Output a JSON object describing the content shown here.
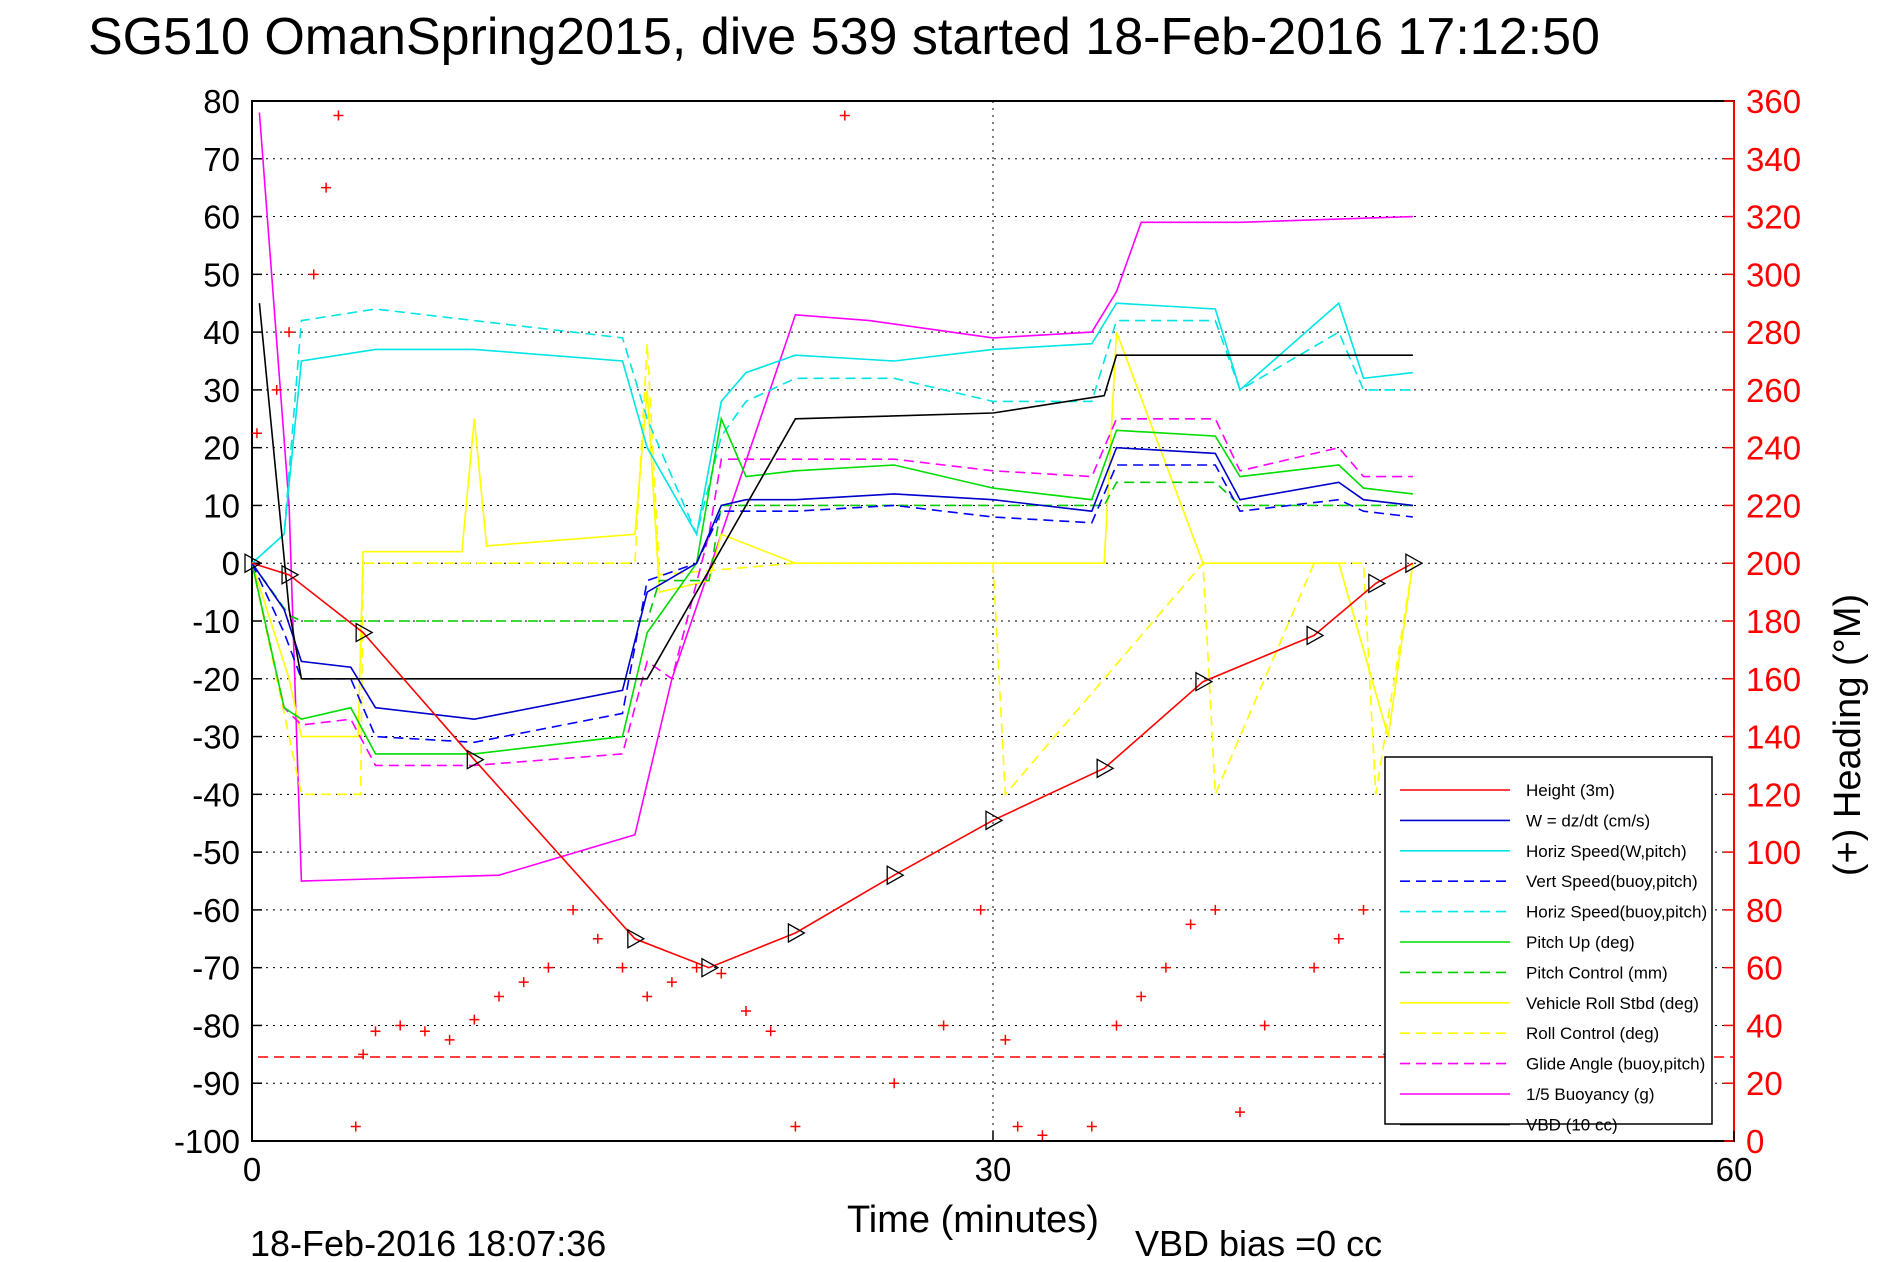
{
  "chart_data": {
    "type": "line",
    "title": "SG510 OmanSpring2015, dive 539 started 18-Feb-2016 17:12:50",
    "xlabel": "Time (minutes)",
    "ylabel": "",
    "y2label": "(+) Heading (°M)",
    "xlim": [
      0,
      60
    ],
    "ylim": [
      -100,
      80
    ],
    "y2lim": [
      0,
      360
    ],
    "x_ticks": [
      "0",
      "30",
      "60"
    ],
    "y_ticks": [
      "80",
      "70",
      "60",
      "50",
      "40",
      "30",
      "20",
      "10",
      "0",
      "-10",
      "-20",
      "-30",
      "-40",
      "-50",
      "-60",
      "-70",
      "-80",
      "-90",
      "-100"
    ],
    "y2_ticks": [
      "360",
      "340",
      "320",
      "300",
      "280",
      "260",
      "240",
      "220",
      "200",
      "180",
      "160",
      "140",
      "120",
      "100",
      "80",
      "60",
      "40",
      "20",
      "0"
    ],
    "grid": true,
    "legend_position": "bottom-right",
    "footer_left": "18-Feb-2016 18:07:36",
    "footer_right": "VBD bias =0 cc",
    "series": [
      {
        "name": "Height (3m)",
        "color": "#ff0000",
        "style": "solid-triangles",
        "x": [
          0,
          1.5,
          4.5,
          9,
          15.5,
          18.5,
          22,
          26,
          30,
          34.5,
          38.5,
          43,
          45.5,
          47
        ],
        "y": [
          0,
          -2,
          -12,
          -34,
          -65,
          -70,
          -64,
          -54,
          -44.5,
          -35.5,
          -20.5,
          -12.5,
          -3.5,
          0
        ]
      },
      {
        "name": "W = dz/dt (cm/s)",
        "color": "#0000cc",
        "style": "solid",
        "x": [
          0,
          1.3,
          2,
          4,
          5,
          9,
          15,
          16,
          18,
          19,
          20,
          22,
          26,
          30,
          34,
          35,
          39,
          40,
          44,
          45,
          47
        ],
        "y": [
          0,
          -8,
          -17,
          -18,
          -25,
          -27,
          -22,
          -5,
          0,
          10,
          11,
          11,
          12,
          11,
          9,
          20,
          19,
          11,
          14,
          11,
          10
        ]
      },
      {
        "name": "Horiz Speed(W,pitch)",
        "color": "#00e5e5",
        "style": "solid",
        "x": [
          0,
          1.3,
          2,
          5,
          9,
          15,
          16,
          18,
          19,
          20,
          22,
          26,
          30,
          34,
          35,
          39,
          40,
          44,
          45,
          47
        ],
        "y": [
          0,
          5,
          35,
          37,
          37,
          35,
          20,
          5,
          28,
          33,
          36,
          35,
          37,
          38,
          45,
          44,
          30,
          45,
          32,
          33
        ]
      },
      {
        "name": "Vert Speed(buoy,pitch)",
        "color": "#0000ff",
        "style": "dashed",
        "x": [
          0,
          1.3,
          2,
          4,
          5,
          9,
          15,
          16,
          18,
          19,
          20,
          22,
          26,
          30,
          34,
          35,
          39,
          40,
          44,
          45,
          47
        ],
        "y": [
          0,
          -12,
          -20,
          -20,
          -30,
          -31,
          -26,
          -3,
          0,
          9,
          9,
          9,
          10,
          8,
          7,
          17,
          17,
          9,
          11,
          9,
          8
        ]
      },
      {
        "name": "Horiz Speed(buoy,pitch)",
        "color": "#00e5e5",
        "style": "dashed",
        "x": [
          0,
          1.3,
          2,
          5,
          9,
          15,
          16,
          18,
          19,
          20,
          22,
          26,
          30,
          34,
          35,
          39,
          40,
          44,
          45,
          47
        ],
        "y": [
          0,
          5,
          42,
          44,
          42,
          39,
          25,
          5,
          22,
          28,
          32,
          32,
          28,
          28,
          42,
          42,
          30,
          40,
          30,
          30
        ]
      },
      {
        "name": "Pitch Up (deg)",
        "color": "#00dd00",
        "style": "solid",
        "x": [
          0,
          1.3,
          2,
          4,
          5,
          9,
          15,
          16,
          18,
          19,
          20,
          22,
          26,
          30,
          34,
          35,
          39,
          40,
          44,
          45,
          47
        ],
        "y": [
          0,
          -25,
          -27,
          -25,
          -33,
          -33,
          -30,
          -12,
          0,
          25,
          15,
          16,
          17,
          13,
          11,
          23,
          22,
          15,
          17,
          13,
          12
        ]
      },
      {
        "name": "Pitch Control (mm)",
        "color": "#00cc00",
        "style": "dashed",
        "x": [
          0,
          1.5,
          2,
          16,
          16.5,
          18.5,
          19,
          34.5,
          35,
          39,
          40,
          47
        ],
        "y": [
          0,
          -9,
          -10,
          -10,
          -3,
          -3,
          10,
          10,
          14,
          14,
          10,
          10
        ]
      },
      {
        "name": "Vehicle Roll Stbd (deg)",
        "color": "#ffff00",
        "style": "solid",
        "x": [
          0,
          1.5,
          2,
          4.3,
          4.5,
          8.5,
          9,
          9.5,
          15.5,
          16,
          16.5,
          18.5,
          19,
          22,
          26,
          30,
          34.5,
          35,
          38.5,
          39,
          43,
          44,
          46,
          47
        ],
        "y": [
          0,
          -20,
          -30,
          -30,
          2,
          2,
          25,
          3,
          5,
          30,
          -5,
          -3,
          5,
          0,
          0,
          0,
          0,
          40,
          0,
          0,
          0,
          0,
          -30,
          0
        ]
      },
      {
        "name": "Roll Control (deg)",
        "color": "#ffff00",
        "style": "dashed",
        "x": [
          0,
          1.5,
          2,
          4.4,
          4.5,
          15.5,
          16,
          16.5,
          22,
          30,
          30.5,
          38.5,
          39,
          43,
          45,
          45.5,
          47
        ],
        "y": [
          0,
          -30,
          -40,
          -40,
          0,
          0,
          38,
          -2,
          0,
          0,
          -40,
          0,
          -40,
          0,
          0,
          -40,
          0
        ]
      },
      {
        "name": "Glide Angle (buoy,pitch)",
        "color": "#ff00ff",
        "style": "dashed",
        "x": [
          0,
          1.3,
          2,
          4,
          5,
          9,
          15,
          16,
          17,
          18.5,
          19,
          20,
          22,
          26,
          30,
          34,
          35,
          39,
          40,
          44,
          45,
          47
        ],
        "y": [
          0,
          -25,
          -28,
          -27,
          -35,
          -35,
          -33,
          -17,
          -20,
          5,
          18,
          18,
          18,
          18,
          16,
          15,
          25,
          25,
          16,
          20,
          15,
          15
        ]
      },
      {
        "name": "1/5 Buoyancy (g)",
        "color": "#ff00ff",
        "style": "solid",
        "x": [
          0.3,
          1.5,
          2,
          10,
          15.5,
          17,
          19,
          22,
          25,
          30,
          34,
          35,
          35.5,
          36,
          40,
          47
        ],
        "y": [
          78,
          10,
          -55,
          -54,
          -47,
          -20,
          5,
          43,
          42,
          39,
          40,
          47,
          53,
          59,
          59,
          60
        ]
      },
      {
        "name": "VBD (10 cc)",
        "color": "#000000",
        "style": "solid",
        "x": [
          0.3,
          1.5,
          2,
          16,
          22,
          30,
          34.5,
          35,
          47
        ],
        "y": [
          45,
          -8,
          -20,
          -20,
          25,
          26,
          29,
          36,
          36
        ]
      },
      {
        "name": "Heading",
        "color": "#ff0000",
        "style": "plus",
        "axis": "right",
        "x": [
          0.2,
          1,
          1.5,
          2.5,
          3,
          3.5,
          4.2,
          4.5,
          5,
          6,
          7,
          8,
          9,
          10,
          11,
          12,
          13,
          14,
          15,
          16,
          17,
          18,
          19,
          20,
          21,
          22,
          24,
          26,
          28,
          29.5,
          30.5,
          31,
          32,
          34,
          35,
          36,
          37,
          38,
          39,
          40,
          41,
          43,
          44,
          45,
          46
        ],
        "y": [
          245,
          260,
          280,
          300,
          330,
          355,
          5,
          30,
          38,
          40,
          38,
          35,
          42,
          50,
          55,
          60,
          80,
          70,
          60,
          50,
          55,
          60,
          58,
          45,
          38,
          5,
          355,
          20,
          40,
          80,
          35,
          5,
          2,
          5,
          40,
          50,
          60,
          75,
          80,
          10,
          40,
          60,
          70,
          80,
          30
        ]
      }
    ]
  }
}
